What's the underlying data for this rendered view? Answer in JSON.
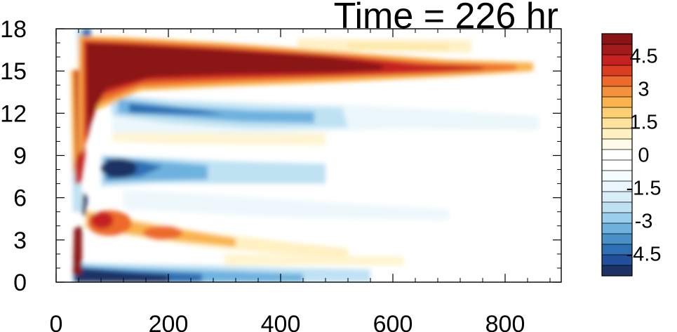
{
  "chart_data": {
    "type": "heatmap",
    "title": "Time = 226 hr",
    "xlabel": "",
    "ylabel": "",
    "xlim": [
      0,
      900
    ],
    "ylim": [
      0,
      18
    ],
    "x_ticks": [
      0,
      200,
      400,
      600,
      800
    ],
    "y_ticks": [
      0,
      3,
      6,
      9,
      12,
      15,
      18
    ],
    "grid": false,
    "colorbar": {
      "placement": "right",
      "levels": [
        -5.5,
        -5,
        -4.5,
        -4,
        -3.5,
        -3,
        -2.5,
        -2,
        -1.5,
        -1,
        -0.5,
        0,
        0.5,
        1,
        1.5,
        2,
        2.5,
        3,
        3.5,
        4,
        4.5,
        5,
        5.5
      ],
      "labeled_levels": [
        "4.5",
        "3",
        "1.5",
        "0",
        "-1.5",
        "-3",
        "-4.5"
      ],
      "colors": [
        "#1e3264",
        "#21519b",
        "#2f6fb4",
        "#4a90c8",
        "#6eb2df",
        "#99cfec",
        "#bfe2f3",
        "#daeef8",
        "#eaf6fb",
        "#f6fbfd",
        "#ffffff",
        "#ffffff",
        "#fffbe6",
        "#fff1c2",
        "#fde39e",
        "#fccf72",
        "#f9b44f",
        "#f5913c",
        "#ee6a2c",
        "#dc3d22",
        "#c42222",
        "#a21a1a",
        "#8a1414"
      ]
    },
    "features": [
      {
        "name": "upper positive band",
        "sign": "positive",
        "x_start": 40,
        "x_end": 850,
        "y_center": 15.5,
        "peak": 5.5
      },
      {
        "name": "upper negative band",
        "sign": "negative",
        "x_start": 100,
        "x_end": 510,
        "y_center": 12.0,
        "peak": -3.0
      },
      {
        "name": "mid negative core",
        "sign": "negative",
        "x_start": 80,
        "x_end": 300,
        "y_center": 8.0,
        "peak": -5.0
      },
      {
        "name": "mid positive core",
        "sign": "positive",
        "x_start": 50,
        "x_end": 300,
        "y_center": 4.0,
        "peak": 4.0
      },
      {
        "name": "lower negative band",
        "sign": "negative",
        "x_start": 30,
        "x_end": 520,
        "y_center": 0.6,
        "peak": -5.5
      },
      {
        "name": "early positive spike",
        "sign": "positive",
        "x_start": 30,
        "x_end": 60,
        "y_center": 2.5,
        "peak": 5.5
      },
      {
        "name": "faint positive band",
        "sign": "positive",
        "x_start": 400,
        "x_end": 730,
        "y_center": 16.8,
        "peak": 2.0
      }
    ]
  }
}
